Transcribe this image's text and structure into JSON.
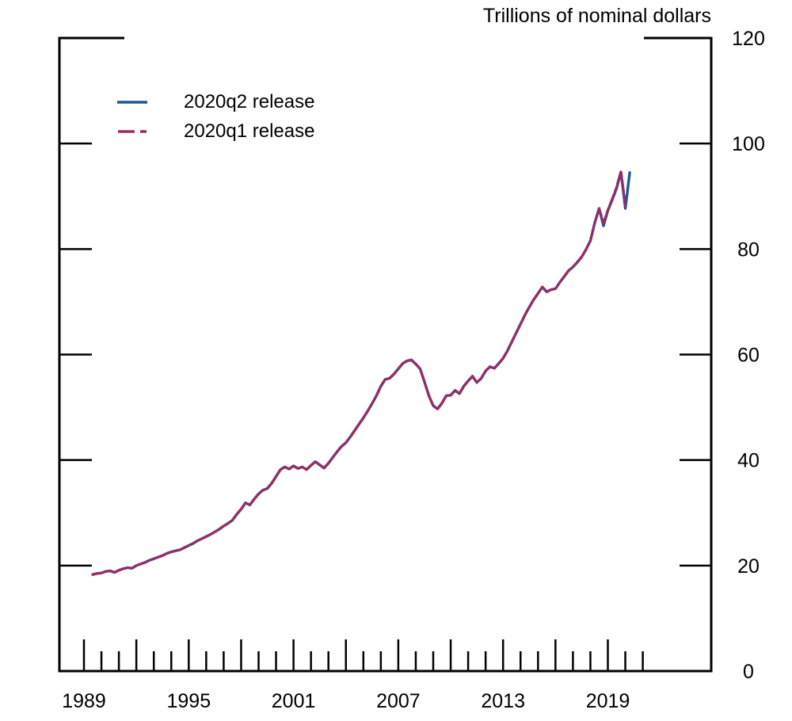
{
  "chart_data": {
    "type": "line",
    "title": "Trillions of nominal dollars",
    "x_axis": {
      "label_years": [
        1989,
        1995,
        2001,
        2007,
        2013,
        2019
      ],
      "tick_years_start": 1989,
      "tick_years_end": 2021,
      "major_tick_every_years": 3,
      "grid": false
    },
    "y_axis": {
      "side": "right",
      "ticks": [
        0,
        20,
        40,
        60,
        80,
        100,
        120
      ],
      "range": [
        0,
        120
      ],
      "grid": false
    },
    "legend": {
      "position": "inside-top-left"
    },
    "series": [
      {
        "name": "2020q2 release",
        "color": "#1e5793",
        "style": "solid",
        "points": [
          [
            1989.5,
            18.3
          ],
          [
            1989.75,
            18.5
          ],
          [
            1990,
            18.6
          ],
          [
            1990.25,
            18.9
          ],
          [
            1990.5,
            19.0
          ],
          [
            1990.75,
            18.7
          ],
          [
            1991,
            19.1
          ],
          [
            1991.25,
            19.4
          ],
          [
            1991.5,
            19.6
          ],
          [
            1991.75,
            19.5
          ],
          [
            1992,
            20.0
          ],
          [
            1992.25,
            20.3
          ],
          [
            1992.5,
            20.6
          ],
          [
            1992.75,
            21.0
          ],
          [
            1993,
            21.3
          ],
          [
            1993.25,
            21.6
          ],
          [
            1993.5,
            21.9
          ],
          [
            1993.75,
            22.3
          ],
          [
            1994,
            22.6
          ],
          [
            1994.25,
            22.8
          ],
          [
            1994.5,
            23.0
          ],
          [
            1994.75,
            23.4
          ],
          [
            1995,
            23.8
          ],
          [
            1995.25,
            24.2
          ],
          [
            1995.5,
            24.7
          ],
          [
            1995.75,
            25.1
          ],
          [
            1996,
            25.5
          ],
          [
            1996.25,
            25.9
          ],
          [
            1996.5,
            26.4
          ],
          [
            1996.75,
            26.9
          ],
          [
            1997,
            27.5
          ],
          [
            1997.25,
            28.0
          ],
          [
            1997.5,
            28.6
          ],
          [
            1997.75,
            29.7
          ],
          [
            1998,
            30.7
          ],
          [
            1998.25,
            31.9
          ],
          [
            1998.5,
            31.5
          ],
          [
            1998.75,
            32.6
          ],
          [
            1999,
            33.6
          ],
          [
            1999.25,
            34.3
          ],
          [
            1999.5,
            34.6
          ],
          [
            1999.75,
            35.6
          ],
          [
            2000,
            36.9
          ],
          [
            2000.25,
            38.2
          ],
          [
            2000.5,
            38.7
          ],
          [
            2000.75,
            38.3
          ],
          [
            2001,
            38.9
          ],
          [
            2001.25,
            38.4
          ],
          [
            2001.5,
            38.7
          ],
          [
            2001.75,
            38.2
          ],
          [
            2002,
            39.0
          ],
          [
            2002.25,
            39.7
          ],
          [
            2002.5,
            39.1
          ],
          [
            2002.75,
            38.5
          ],
          [
            2003,
            39.4
          ],
          [
            2003.25,
            40.5
          ],
          [
            2003.5,
            41.6
          ],
          [
            2003.75,
            42.6
          ],
          [
            2004,
            43.3
          ],
          [
            2004.25,
            44.4
          ],
          [
            2004.5,
            45.6
          ],
          [
            2004.75,
            46.8
          ],
          [
            2005,
            48.0
          ],
          [
            2005.25,
            49.3
          ],
          [
            2005.5,
            50.7
          ],
          [
            2005.75,
            52.2
          ],
          [
            2006,
            54.0
          ],
          [
            2006.25,
            55.3
          ],
          [
            2006.5,
            55.5
          ],
          [
            2006.75,
            56.3
          ],
          [
            2007,
            57.3
          ],
          [
            2007.25,
            58.3
          ],
          [
            2007.5,
            58.8
          ],
          [
            2007.75,
            59.0
          ],
          [
            2008,
            58.2
          ],
          [
            2008.25,
            57.3
          ],
          [
            2008.5,
            54.8
          ],
          [
            2008.75,
            52.2
          ],
          [
            2009,
            50.3
          ],
          [
            2009.25,
            49.7
          ],
          [
            2009.5,
            50.8
          ],
          [
            2009.75,
            52.2
          ],
          [
            2010,
            52.3
          ],
          [
            2010.25,
            53.2
          ],
          [
            2010.5,
            52.6
          ],
          [
            2010.75,
            54.0
          ],
          [
            2011,
            55.0
          ],
          [
            2011.25,
            55.9
          ],
          [
            2011.5,
            54.7
          ],
          [
            2011.75,
            55.5
          ],
          [
            2012,
            56.9
          ],
          [
            2012.25,
            57.7
          ],
          [
            2012.5,
            57.4
          ],
          [
            2012.75,
            58.3
          ],
          [
            2013,
            59.3
          ],
          [
            2013.25,
            60.7
          ],
          [
            2013.5,
            62.4
          ],
          [
            2013.75,
            64.1
          ],
          [
            2014,
            65.8
          ],
          [
            2014.25,
            67.5
          ],
          [
            2014.5,
            69.0
          ],
          [
            2014.75,
            70.4
          ],
          [
            2015,
            71.6
          ],
          [
            2015.25,
            72.8
          ],
          [
            2015.5,
            71.9
          ],
          [
            2015.75,
            72.3
          ],
          [
            2016,
            72.5
          ],
          [
            2016.25,
            73.7
          ],
          [
            2016.5,
            74.8
          ],
          [
            2016.75,
            75.9
          ],
          [
            2017,
            76.6
          ],
          [
            2017.25,
            77.5
          ],
          [
            2017.5,
            78.5
          ],
          [
            2017.75,
            79.9
          ],
          [
            2018,
            81.6
          ],
          [
            2018.25,
            85.0
          ],
          [
            2018.5,
            87.7
          ],
          [
            2018.75,
            84.4
          ],
          [
            2019,
            87.3
          ],
          [
            2019.25,
            89.3
          ],
          [
            2019.5,
            91.5
          ],
          [
            2019.75,
            94.6
          ],
          [
            2020,
            87.7
          ],
          [
            2020.25,
            94.5
          ]
        ]
      },
      {
        "name": "2020q1 release",
        "color": "#9c2b63",
        "style": "long-short-dash",
        "points": [
          [
            1989.5,
            18.3
          ],
          [
            1989.75,
            18.5
          ],
          [
            1990,
            18.6
          ],
          [
            1990.25,
            18.9
          ],
          [
            1990.5,
            19.0
          ],
          [
            1990.75,
            18.7
          ],
          [
            1991,
            19.1
          ],
          [
            1991.25,
            19.4
          ],
          [
            1991.5,
            19.6
          ],
          [
            1991.75,
            19.5
          ],
          [
            1992,
            20.0
          ],
          [
            1992.25,
            20.3
          ],
          [
            1992.5,
            20.6
          ],
          [
            1992.75,
            21.0
          ],
          [
            1993,
            21.3
          ],
          [
            1993.25,
            21.6
          ],
          [
            1993.5,
            21.9
          ],
          [
            1993.75,
            22.3
          ],
          [
            1994,
            22.6
          ],
          [
            1994.25,
            22.8
          ],
          [
            1994.5,
            23.0
          ],
          [
            1994.75,
            23.4
          ],
          [
            1995,
            23.8
          ],
          [
            1995.25,
            24.2
          ],
          [
            1995.5,
            24.7
          ],
          [
            1995.75,
            25.1
          ],
          [
            1996,
            25.5
          ],
          [
            1996.25,
            25.9
          ],
          [
            1996.5,
            26.4
          ],
          [
            1996.75,
            26.9
          ],
          [
            1997,
            27.5
          ],
          [
            1997.25,
            28.0
          ],
          [
            1997.5,
            28.6
          ],
          [
            1997.75,
            29.7
          ],
          [
            1998,
            30.7
          ],
          [
            1998.25,
            31.9
          ],
          [
            1998.5,
            31.5
          ],
          [
            1998.75,
            32.6
          ],
          [
            1999,
            33.6
          ],
          [
            1999.25,
            34.3
          ],
          [
            1999.5,
            34.6
          ],
          [
            1999.75,
            35.6
          ],
          [
            2000,
            36.9
          ],
          [
            2000.25,
            38.2
          ],
          [
            2000.5,
            38.7
          ],
          [
            2000.75,
            38.3
          ],
          [
            2001,
            38.9
          ],
          [
            2001.25,
            38.4
          ],
          [
            2001.5,
            38.7
          ],
          [
            2001.75,
            38.2
          ],
          [
            2002,
            39.0
          ],
          [
            2002.25,
            39.7
          ],
          [
            2002.5,
            39.1
          ],
          [
            2002.75,
            38.5
          ],
          [
            2003,
            39.4
          ],
          [
            2003.25,
            40.5
          ],
          [
            2003.5,
            41.6
          ],
          [
            2003.75,
            42.6
          ],
          [
            2004,
            43.3
          ],
          [
            2004.25,
            44.4
          ],
          [
            2004.5,
            45.6
          ],
          [
            2004.75,
            46.8
          ],
          [
            2005,
            48.0
          ],
          [
            2005.25,
            49.3
          ],
          [
            2005.5,
            50.7
          ],
          [
            2005.75,
            52.2
          ],
          [
            2006,
            54.0
          ],
          [
            2006.25,
            55.3
          ],
          [
            2006.5,
            55.5
          ],
          [
            2006.75,
            56.3
          ],
          [
            2007,
            57.3
          ],
          [
            2007.25,
            58.3
          ],
          [
            2007.5,
            58.8
          ],
          [
            2007.75,
            59.0
          ],
          [
            2008,
            58.2
          ],
          [
            2008.25,
            57.3
          ],
          [
            2008.5,
            54.8
          ],
          [
            2008.75,
            52.2
          ],
          [
            2009,
            50.3
          ],
          [
            2009.25,
            49.7
          ],
          [
            2009.5,
            50.8
          ],
          [
            2009.75,
            52.2
          ],
          [
            2010,
            52.3
          ],
          [
            2010.25,
            53.2
          ],
          [
            2010.5,
            52.6
          ],
          [
            2010.75,
            54.0
          ],
          [
            2011,
            55.0
          ],
          [
            2011.25,
            55.9
          ],
          [
            2011.5,
            54.7
          ],
          [
            2011.75,
            55.5
          ],
          [
            2012,
            56.9
          ],
          [
            2012.25,
            57.7
          ],
          [
            2012.5,
            57.4
          ],
          [
            2012.75,
            58.3
          ],
          [
            2013,
            59.3
          ],
          [
            2013.25,
            60.7
          ],
          [
            2013.5,
            62.4
          ],
          [
            2013.75,
            64.1
          ],
          [
            2014,
            65.8
          ],
          [
            2014.25,
            67.5
          ],
          [
            2014.5,
            69.0
          ],
          [
            2014.75,
            70.4
          ],
          [
            2015,
            71.6
          ],
          [
            2015.25,
            72.8
          ],
          [
            2015.5,
            71.9
          ],
          [
            2015.75,
            72.3
          ],
          [
            2016,
            72.5
          ],
          [
            2016.25,
            73.7
          ],
          [
            2016.5,
            74.8
          ],
          [
            2016.75,
            75.9
          ],
          [
            2017,
            76.6
          ],
          [
            2017.25,
            77.5
          ],
          [
            2017.5,
            78.5
          ],
          [
            2017.75,
            79.9
          ],
          [
            2018,
            81.6
          ],
          [
            2018.25,
            85.0
          ],
          [
            2018.5,
            87.7
          ],
          [
            2018.75,
            84.9
          ],
          [
            2019,
            87.4
          ],
          [
            2019.25,
            89.5
          ],
          [
            2019.5,
            91.7
          ],
          [
            2019.75,
            94.8
          ],
          [
            2020,
            88.2
          ]
        ]
      }
    ]
  }
}
